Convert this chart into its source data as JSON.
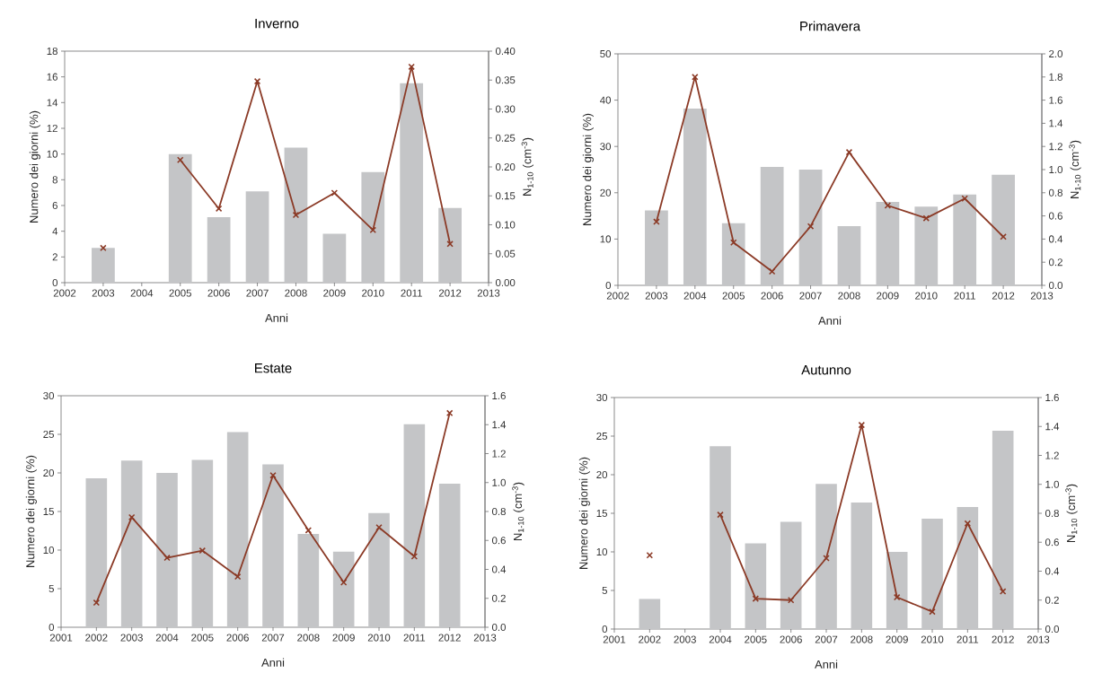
{
  "chart_data": [
    {
      "type": "bar",
      "title": "Inverno",
      "xlabel": "Anni",
      "ylabel": "Numero dei giorni (%)",
      "y2label": "N$_{1-10}$ (cm$^{-3}$)",
      "x": [
        2003,
        2004,
        2005,
        2006,
        2007,
        2008,
        2009,
        2010,
        2011,
        2012
      ],
      "xlim": [
        2002,
        2013
      ],
      "xticks": [
        2002,
        2003,
        2004,
        2005,
        2006,
        2007,
        2008,
        2009,
        2010,
        2011,
        2012,
        2013
      ],
      "ylim": [
        0,
        18
      ],
      "yticks": [
        0,
        2,
        4,
        6,
        8,
        10,
        12,
        14,
        16,
        18
      ],
      "y2lim": [
        0,
        0.4
      ],
      "y2ticks": [
        {
          "value": 0,
          "label": "0.00"
        },
        {
          "value": 0.05,
          "label": "0.05"
        },
        {
          "value": 0.1,
          "label": "0.10"
        },
        {
          "value": 0.15,
          "label": "0.15"
        },
        {
          "value": 0.2,
          "label": "0.20"
        },
        {
          "value": 0.25,
          "label": "0.25"
        },
        {
          "value": 0.3,
          "label": "0.30"
        },
        {
          "value": 0.35,
          "label": "0.35"
        },
        {
          "value": 0.4,
          "label": "0.40"
        }
      ],
      "series": [
        {
          "color": "#c4c5c7",
          "values": [
            2.7,
            null,
            10.0,
            5.1,
            7.1,
            10.5,
            3.8,
            8.6,
            15.5,
            5.8
          ]
        },
        {
          "type": "line",
          "axis": "y2",
          "color": "#8b3a26",
          "marker": "cross",
          "line_style": "solid",
          "values": [
            0.06,
            null,
            0.212,
            0.128,
            0.348,
            0.117,
            0.155,
            0.091,
            0.373,
            0.067
          ]
        }
      ]
    },
    {
      "type": "bar",
      "title": "Primavera",
      "xlabel": "Anni",
      "ylabel": "Numero dei giorni (%)",
      "y2label": "N$_{1-10}$ (cm$^{-3}$)",
      "x": [
        2003,
        2004,
        2005,
        2006,
        2007,
        2008,
        2009,
        2010,
        2011,
        2012
      ],
      "xlim": [
        2002,
        2013
      ],
      "xticks": [
        2002,
        2003,
        2004,
        2005,
        2006,
        2007,
        2008,
        2009,
        2010,
        2011,
        2012,
        2013
      ],
      "ylim": [
        0,
        50
      ],
      "yticks": [
        0,
        10,
        20,
        30,
        40,
        50
      ],
      "y2lim": [
        0,
        2.0
      ],
      "y2ticks": [
        {
          "value": 0,
          "label": "0.0"
        },
        {
          "value": 0.2,
          "label": "0.2"
        },
        {
          "value": 0.4,
          "label": "0.4"
        },
        {
          "value": 0.6,
          "label": "0.6"
        },
        {
          "value": 0.8,
          "label": "0.8"
        },
        {
          "value": 1.0,
          "label": "1.0"
        },
        {
          "value": 1.2,
          "label": "1.2"
        },
        {
          "value": 1.4,
          "label": "1.4"
        },
        {
          "value": 1.6,
          "label": "1.6"
        },
        {
          "value": 1.8,
          "label": "1.8"
        },
        {
          "value": 2.0,
          "label": "2.0"
        }
      ],
      "series": [
        {
          "color": "#c4c5c7",
          "values": [
            16.2,
            38.2,
            13.4,
            25.6,
            25.0,
            12.8,
            18.0,
            17.0,
            19.6,
            23.9
          ]
        },
        {
          "type": "line",
          "axis": "y2",
          "color": "#8b3a26",
          "marker": "cross",
          "line_style": "solid",
          "values": [
            0.55,
            1.8,
            0.37,
            0.12,
            0.51,
            1.15,
            0.69,
            0.58,
            0.75,
            0.42
          ]
        }
      ]
    },
    {
      "type": "bar",
      "title": "Estate",
      "xlabel": "Anni",
      "ylabel": "Numero dei giorni (%)",
      "y2label": "N$_{1-10}$ (cm$^{-3}$)",
      "x": [
        2002,
        2003,
        2004,
        2005,
        2006,
        2007,
        2008,
        2009,
        2010,
        2011,
        2012
      ],
      "xlim": [
        2001,
        2013
      ],
      "xticks": [
        2001,
        2002,
        2003,
        2004,
        2005,
        2006,
        2007,
        2008,
        2009,
        2010,
        2011,
        2012,
        2013
      ],
      "ylim": [
        0,
        30
      ],
      "yticks": [
        0,
        5,
        10,
        15,
        20,
        25,
        30
      ],
      "y2lim": [
        0,
        1.6
      ],
      "y2ticks": [
        {
          "value": 0,
          "label": "0.0"
        },
        {
          "value": 0.2,
          "label": "0.2"
        },
        {
          "value": 0.4,
          "label": "0.4"
        },
        {
          "value": 0.6,
          "label": "0.6"
        },
        {
          "value": 0.8,
          "label": "0.8"
        },
        {
          "value": 1.0,
          "label": "1.0"
        },
        {
          "value": 1.2,
          "label": "1.2"
        },
        {
          "value": 1.4,
          "label": "1.4"
        },
        {
          "value": 1.6,
          "label": "1.6"
        }
      ],
      "series": [
        {
          "color": "#c4c5c7",
          "values": [
            19.3,
            21.6,
            20.0,
            21.7,
            25.3,
            21.1,
            12.1,
            9.8,
            14.8,
            26.3,
            18.6
          ]
        },
        {
          "type": "line",
          "axis": "y2",
          "color": "#8b3a26",
          "marker": "cross",
          "line_style": "solid",
          "values": [
            0.17,
            0.76,
            0.48,
            0.53,
            0.35,
            1.05,
            0.67,
            0.31,
            0.69,
            0.49,
            1.48
          ]
        }
      ]
    },
    {
      "type": "bar",
      "title": "Autunno",
      "xlabel": "Anni",
      "ylabel": "Numero dei giorni (%)",
      "y2label": "N$_{1-10}$ (cm$^{-3}$)",
      "x": [
        2002,
        2003,
        2004,
        2005,
        2006,
        2007,
        2008,
        2009,
        2010,
        2011,
        2012
      ],
      "xlim": [
        2001,
        2013
      ],
      "xticks": [
        2001,
        2002,
        2003,
        2004,
        2005,
        2006,
        2007,
        2008,
        2009,
        2010,
        2011,
        2012,
        2013
      ],
      "ylim": [
        0,
        30
      ],
      "yticks": [
        0,
        5,
        10,
        15,
        20,
        25,
        30
      ],
      "y2lim": [
        0,
        1.6
      ],
      "y2ticks": [
        {
          "value": 0,
          "label": "0.0"
        },
        {
          "value": 0.2,
          "label": "0.2"
        },
        {
          "value": 0.4,
          "label": "0.4"
        },
        {
          "value": 0.6,
          "label": "0.6"
        },
        {
          "value": 0.8,
          "label": "0.8"
        },
        {
          "value": 1.0,
          "label": "1.0"
        },
        {
          "value": 1.2,
          "label": "1.2"
        },
        {
          "value": 1.4,
          "label": "1.4"
        },
        {
          "value": 1.6,
          "label": "1.6"
        }
      ],
      "series": [
        {
          "color": "#c4c5c7",
          "values": [
            3.9,
            null,
            23.7,
            11.1,
            13.9,
            18.8,
            16.4,
            10.0,
            14.3,
            15.8,
            25.7
          ]
        },
        {
          "type": "line",
          "axis": "y2",
          "color": "#8b3a26",
          "marker": "cross",
          "line_style": "solid",
          "values": [
            0.51,
            null,
            0.79,
            0.21,
            0.2,
            0.49,
            1.41,
            0.22,
            0.12,
            0.73,
            0.26
          ]
        }
      ]
    }
  ]
}
